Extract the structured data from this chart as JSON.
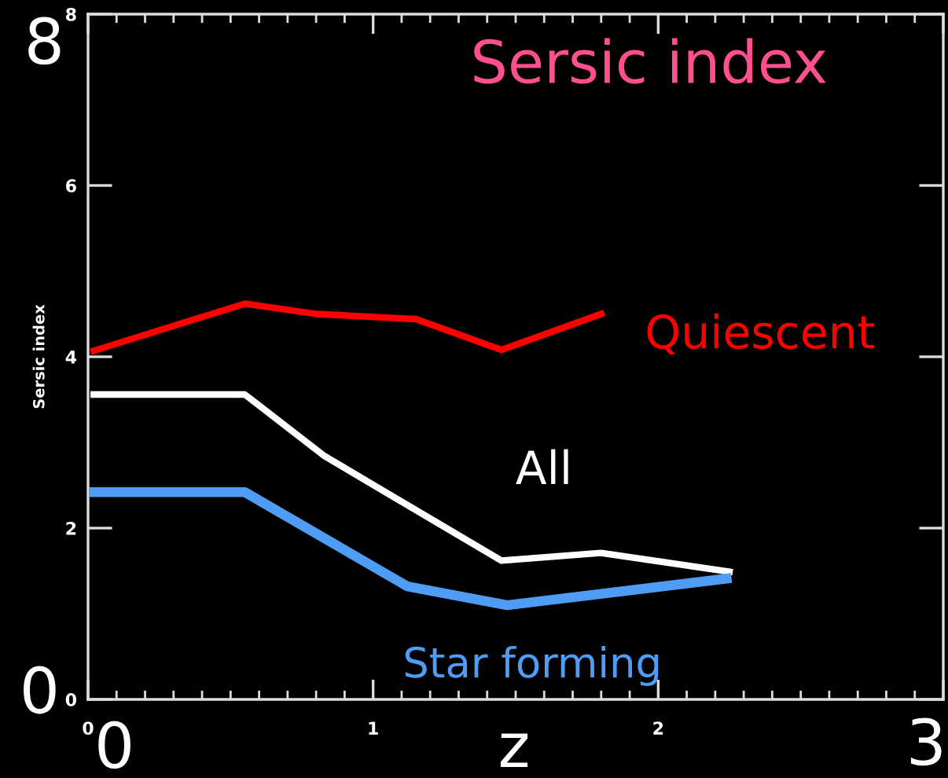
{
  "chart_data": {
    "type": "line",
    "title": "Sersic index",
    "xlabel": "z",
    "ylabel": "Sersic index",
    "xlim": [
      0,
      3
    ],
    "ylim": [
      0,
      8
    ],
    "xticks": [
      0,
      1,
      2,
      {
        "value": 3,
        "label": null
      }
    ],
    "yticks": [
      0,
      2,
      4,
      6,
      8
    ],
    "grid": false,
    "legend": false,
    "marker": "none",
    "line_style": "solid",
    "annotations": [
      "8",
      "0",
      "0",
      "3"
    ],
    "series": [
      {
        "name": "Quiescent",
        "color": "#ff0000",
        "x": [
          0.02,
          0.55,
          0.8,
          1.15,
          1.45,
          1.8
        ],
        "values": [
          4.07,
          4.62,
          4.5,
          4.44,
          4.08,
          4.5
        ]
      },
      {
        "name": "All",
        "color": "#ffffff",
        "x": [
          0.02,
          0.55,
          0.83,
          1.45,
          1.8,
          2.25
        ],
        "values": [
          3.56,
          3.56,
          2.84,
          1.62,
          1.71,
          1.49
        ]
      },
      {
        "name": "Star forming",
        "color": "#4f9cf5",
        "x": [
          0.02,
          0.55,
          1.12,
          1.47,
          2.24
        ],
        "values": [
          2.42,
          2.42,
          1.32,
          1.1,
          1.41
        ]
      }
    ]
  }
}
